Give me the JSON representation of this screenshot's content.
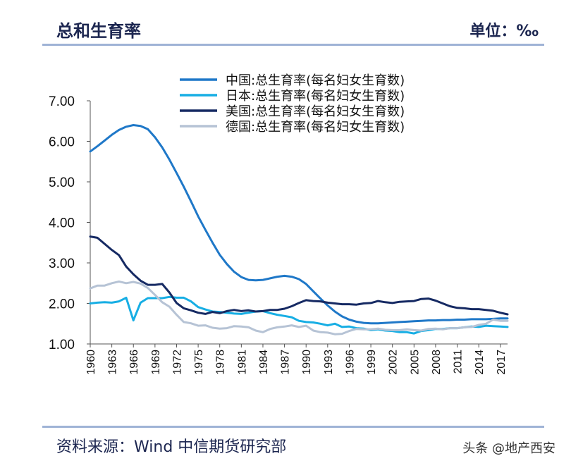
{
  "header": {
    "title": "总和生育率",
    "unit": "单位：‰"
  },
  "footer": {
    "source": "资料来源：Wind 中信期货研究部",
    "watermark": "头条 @地产西安"
  },
  "chart_data": {
    "type": "line",
    "title": "总和生育率",
    "xlabel": "",
    "ylabel": "",
    "ylim": [
      1.0,
      7.0
    ],
    "yticks": [
      "1.00",
      "2.00",
      "3.00",
      "4.00",
      "5.00",
      "6.00",
      "7.00"
    ],
    "xlim": [
      1960,
      2018
    ],
    "xticks": [
      1960,
      1963,
      1966,
      1969,
      1972,
      1975,
      1978,
      1981,
      1984,
      1987,
      1990,
      1993,
      1996,
      1999,
      2002,
      2005,
      2008,
      2011,
      2014,
      2017
    ],
    "grid": false,
    "legend_position": "top",
    "x": [
      1960,
      1961,
      1962,
      1963,
      1964,
      1965,
      1966,
      1967,
      1968,
      1969,
      1970,
      1971,
      1972,
      1973,
      1974,
      1975,
      1976,
      1977,
      1978,
      1979,
      1980,
      1981,
      1982,
      1983,
      1984,
      1985,
      1986,
      1987,
      1988,
      1989,
      1990,
      1991,
      1992,
      1993,
      1994,
      1995,
      1996,
      1997,
      1998,
      1999,
      2000,
      2001,
      2002,
      2003,
      2004,
      2005,
      2006,
      2007,
      2008,
      2009,
      2010,
      2011,
      2012,
      2013,
      2014,
      2015,
      2016,
      2017,
      2018
    ],
    "series": [
      {
        "name": "中国:总生育率(每名妇女生育数)",
        "color": "#1f78c8",
        "values": [
          5.75,
          5.88,
          6.02,
          6.16,
          6.28,
          6.36,
          6.4,
          6.38,
          6.3,
          6.1,
          5.85,
          5.55,
          5.22,
          4.88,
          4.52,
          4.15,
          3.82,
          3.5,
          3.2,
          2.97,
          2.78,
          2.65,
          2.58,
          2.57,
          2.58,
          2.62,
          2.66,
          2.68,
          2.66,
          2.6,
          2.48,
          2.3,
          2.12,
          1.95,
          1.8,
          1.68,
          1.6,
          1.55,
          1.52,
          1.51,
          1.51,
          1.52,
          1.53,
          1.54,
          1.55,
          1.56,
          1.57,
          1.58,
          1.58,
          1.59,
          1.59,
          1.6,
          1.6,
          1.61,
          1.61,
          1.61,
          1.62,
          1.63,
          1.63
        ]
      },
      {
        "name": "日本:总生育率(每名妇女生育数)",
        "color": "#17aee4",
        "values": [
          2.0,
          2.02,
          2.03,
          2.02,
          2.05,
          2.14,
          1.58,
          2.02,
          2.13,
          2.13,
          2.13,
          2.16,
          2.14,
          2.14,
          2.05,
          1.91,
          1.85,
          1.8,
          1.79,
          1.77,
          1.75,
          1.74,
          1.77,
          1.8,
          1.81,
          1.76,
          1.72,
          1.69,
          1.66,
          1.57,
          1.54,
          1.53,
          1.5,
          1.46,
          1.5,
          1.42,
          1.43,
          1.39,
          1.38,
          1.34,
          1.36,
          1.33,
          1.32,
          1.29,
          1.29,
          1.26,
          1.32,
          1.34,
          1.37,
          1.37,
          1.39,
          1.39,
          1.41,
          1.43,
          1.42,
          1.45,
          1.44,
          1.43,
          1.42
        ]
      },
      {
        "name": "美国:总生育率(每名妇女生育数)",
        "color": "#162a63",
        "values": [
          3.65,
          3.62,
          3.47,
          3.32,
          3.19,
          2.91,
          2.72,
          2.56,
          2.46,
          2.46,
          2.48,
          2.27,
          2.01,
          1.88,
          1.83,
          1.77,
          1.74,
          1.79,
          1.76,
          1.81,
          1.84,
          1.81,
          1.83,
          1.8,
          1.81,
          1.84,
          1.84,
          1.87,
          1.93,
          2.01,
          2.08,
          2.06,
          2.05,
          2.02,
          2.0,
          1.98,
          1.98,
          1.97,
          2.0,
          2.01,
          2.06,
          2.03,
          2.01,
          2.04,
          2.05,
          2.06,
          2.11,
          2.12,
          2.07,
          2.0,
          1.93,
          1.89,
          1.88,
          1.86,
          1.86,
          1.84,
          1.82,
          1.77,
          1.73
        ]
      },
      {
        "name": "德国:总生育率(每名妇女生育数)",
        "color": "#b6c3d5",
        "values": [
          2.37,
          2.44,
          2.44,
          2.5,
          2.54,
          2.5,
          2.53,
          2.49,
          2.38,
          2.21,
          2.03,
          1.92,
          1.72,
          1.54,
          1.51,
          1.45,
          1.46,
          1.4,
          1.38,
          1.39,
          1.44,
          1.43,
          1.41,
          1.33,
          1.29,
          1.37,
          1.41,
          1.43,
          1.46,
          1.42,
          1.45,
          1.33,
          1.29,
          1.28,
          1.24,
          1.25,
          1.32,
          1.37,
          1.36,
          1.36,
          1.38,
          1.35,
          1.34,
          1.34,
          1.36,
          1.34,
          1.33,
          1.37,
          1.38,
          1.36,
          1.39,
          1.39,
          1.41,
          1.42,
          1.47,
          1.5,
          1.6,
          1.57,
          1.57
        ]
      }
    ]
  }
}
